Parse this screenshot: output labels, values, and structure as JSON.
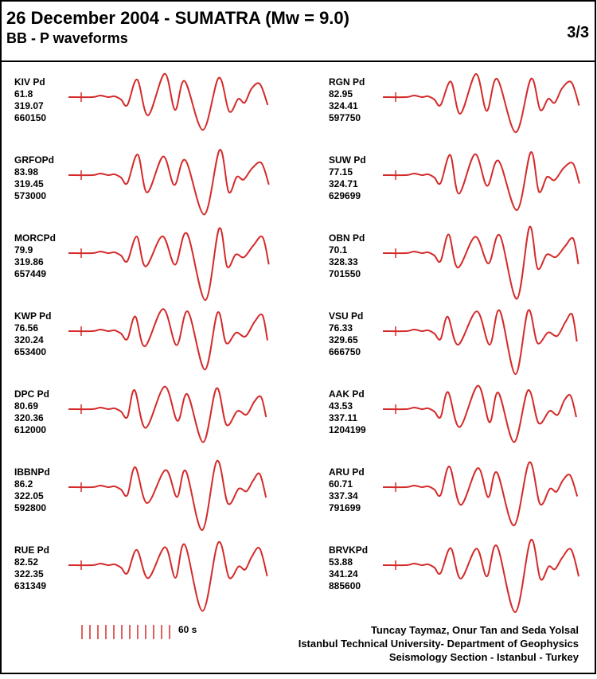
{
  "header": {
    "title": "26 December 2004 - SUMATRA (Mw = 9.0)",
    "subtitle": "BB - P waveforms",
    "page": "3/3"
  },
  "left": [
    {
      "name": "KIV Pd",
      "lines": [
        61.8,
        319.07,
        660150
      ]
    },
    {
      "name": "GRFOPd",
      "lines": [
        83.98,
        319.45,
        573000
      ]
    },
    {
      "name": "MORCPd",
      "lines": [
        79.9,
        319.86,
        657449
      ]
    },
    {
      "name": "KWP Pd",
      "lines": [
        76.56,
        320.24,
        653400
      ]
    },
    {
      "name": "DPC Pd",
      "lines": [
        80.69,
        320.36,
        612000
      ]
    },
    {
      "name": "IBBNPd",
      "lines": [
        86.2,
        322.05,
        592800
      ]
    },
    {
      "name": "RUE Pd",
      "lines": [
        82.52,
        322.35,
        631349
      ]
    }
  ],
  "right": [
    {
      "name": "RGN Pd",
      "lines": [
        82.95,
        324.41,
        597750
      ]
    },
    {
      "name": "SUW Pd",
      "lines": [
        77.15,
        324.71,
        629699
      ]
    },
    {
      "name": "OBN Pd",
      "lines": [
        70.1,
        328.33,
        701550
      ]
    },
    {
      "name": "VSU Pd",
      "lines": [
        76.33,
        329.65,
        666750
      ]
    },
    {
      "name": "AAK Pd",
      "lines": [
        43.53,
        337.11,
        1204199
      ]
    },
    {
      "name": "ARU Pd",
      "lines": [
        60.71,
        337.34,
        791699
      ]
    },
    {
      "name": "BRVKPd",
      "lines": [
        53.88,
        341.24,
        885600
      ]
    }
  ],
  "scale_label": "60 s",
  "credits": [
    "Tuncay Taymaz, Onur Tan and Seda Yolsal",
    "Istanbul Technical University- Department of Geophysics",
    "Seismology Section - Istanbul - Turkey"
  ]
}
